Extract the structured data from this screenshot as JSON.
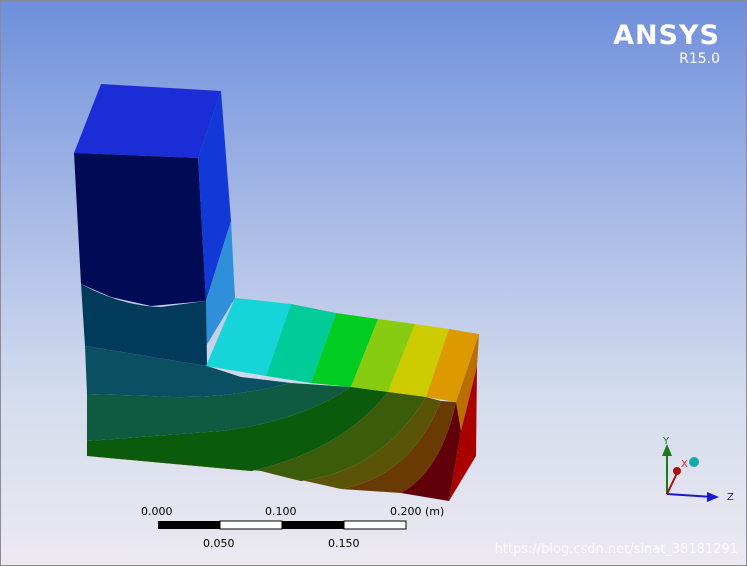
{
  "logo": {
    "brand": "ANSYS",
    "version": "R15.0"
  },
  "scale_bar": {
    "top_labels": [
      "0.000",
      "0.100",
      "0.200 (m)"
    ],
    "bottom_labels": [
      "0.050",
      "0.150"
    ]
  },
  "triad": {
    "x": "X",
    "y": "Y",
    "z": "Z"
  },
  "watermark": "https://blog.csdn.net/sinat_38181291",
  "colors": {
    "background_top": "#6f8fdc",
    "background_bottom": "#ece9f0",
    "contour": [
      "#000099",
      "#0055cc",
      "#00ccdd",
      "#00cc88",
      "#00cc00",
      "#88cc00",
      "#cccc00",
      "#dd9900",
      "#cc0000"
    ]
  }
}
